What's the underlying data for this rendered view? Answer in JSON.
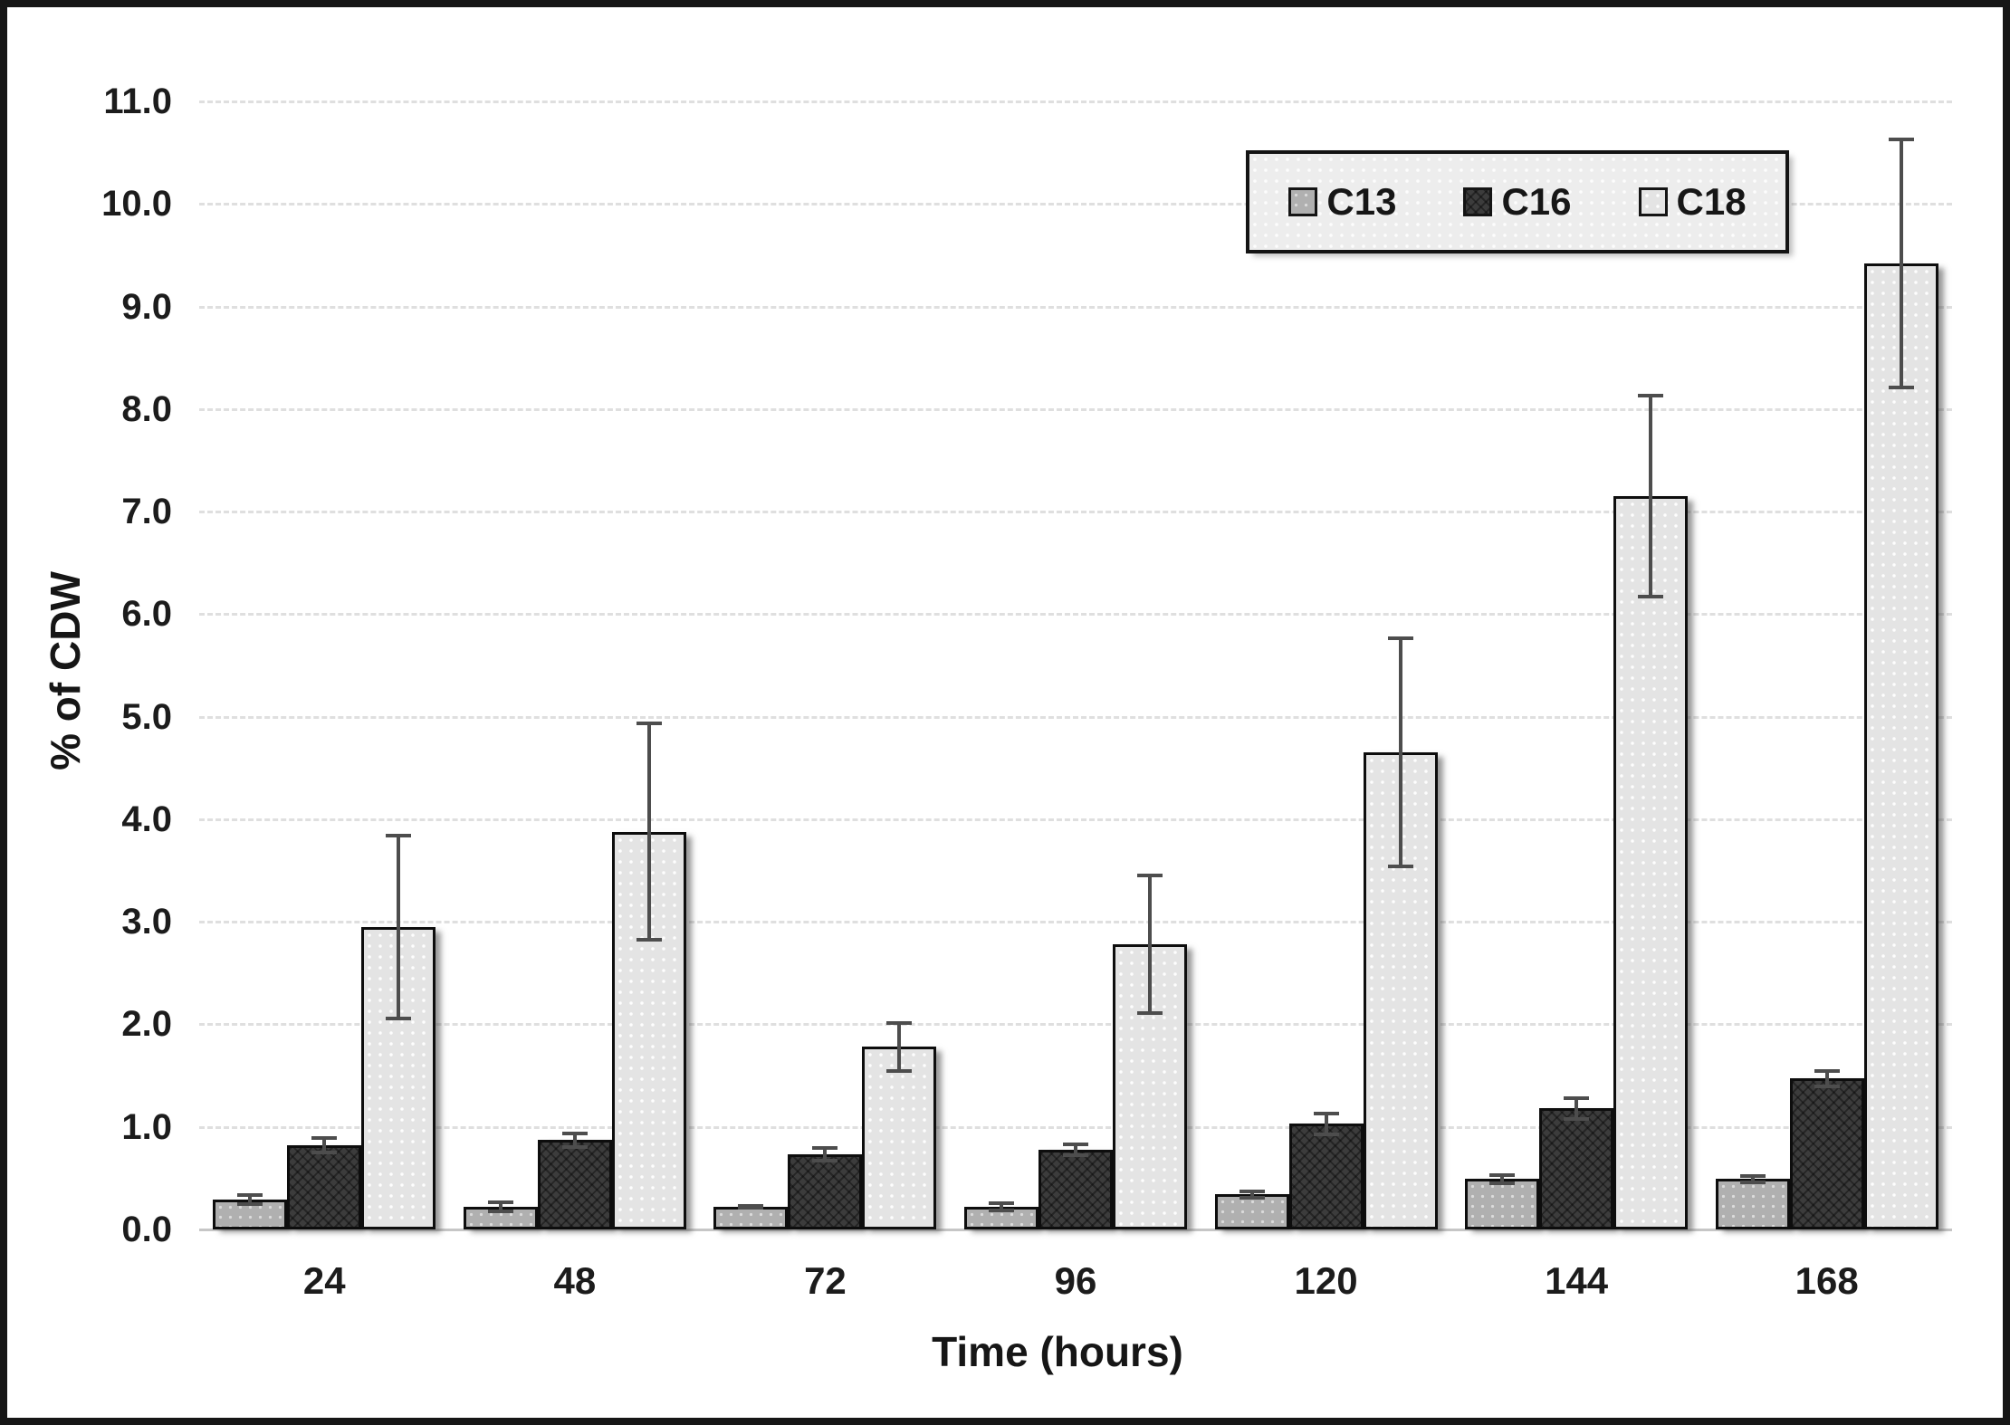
{
  "figure": {
    "y_axis_title": "% of CDW",
    "x_axis_title": "Time (hours)",
    "y_ticks": [
      "0.0",
      "1.0",
      "2.0",
      "3.0",
      "4.0",
      "5.0",
      "6.0",
      "7.0",
      "8.0",
      "9.0",
      "10.0",
      "11.0"
    ],
    "x_ticks": [
      "24",
      "48",
      "72",
      "96",
      "120",
      "144",
      "168"
    ]
  },
  "legend": {
    "items": [
      {
        "label": "C13",
        "swatch_color": "#b0b0b0"
      },
      {
        "label": "C16",
        "swatch_color": "#3c3c3c"
      },
      {
        "label": "C18",
        "swatch_color": "#e4e4e4"
      }
    ]
  },
  "colors": {
    "c13_fill": "#b0b0b0",
    "c16_fill": "#3c3c3c",
    "c18_fill": "#e4e4e4",
    "bar_border": "#0d0d0d",
    "error_bar": "#4d4d4d",
    "gridline": "#dfdfdf",
    "text": "#1c1c1c",
    "outer_border": "#161616",
    "background": "#ffffff"
  },
  "chart_data": {
    "type": "bar",
    "title": "",
    "xlabel": "Time (hours)",
    "ylabel": "% of CDW",
    "categories": [
      24,
      48,
      72,
      96,
      120,
      144,
      168
    ],
    "series": [
      {
        "name": "C13",
        "values": [
          0.29,
          0.22,
          0.22,
          0.22,
          0.34,
          0.49,
          0.49
        ],
        "errors": [
          0.06,
          0.06,
          0.03,
          0.05,
          0.05,
          0.06,
          0.05
        ]
      },
      {
        "name": "C16",
        "values": [
          0.82,
          0.87,
          0.73,
          0.78,
          1.03,
          1.18,
          1.47
        ],
        "errors": [
          0.09,
          0.08,
          0.08,
          0.07,
          0.12,
          0.12,
          0.09
        ]
      },
      {
        "name": "C18",
        "values": [
          2.95,
          3.88,
          1.78,
          2.78,
          4.65,
          7.15,
          9.42
        ],
        "errors": [
          0.91,
          1.07,
          0.25,
          0.69,
          1.13,
          1.0,
          1.23
        ]
      }
    ],
    "ylim": [
      0,
      11
    ],
    "ytick_step": 1.0,
    "grid": true,
    "error_bars": true,
    "legend_position": "top-right"
  }
}
